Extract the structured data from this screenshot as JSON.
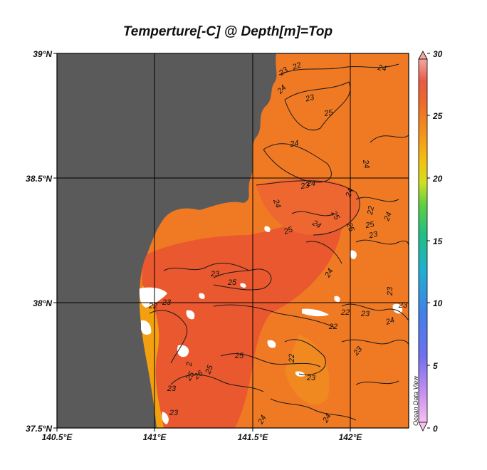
{
  "title": "Temperture[-C] @ Depth[m]=Top",
  "watermark": "Ocean Data View",
  "axes": {
    "x_ticks": [
      "140.5°E",
      "141°E",
      "141.5°E",
      "142°E"
    ],
    "y_ticks": [
      "39°N",
      "38.5°N",
      "38°N",
      "37.5°N"
    ]
  },
  "colorbar": {
    "range": [
      0,
      30
    ],
    "ticks": [
      "30",
      "25",
      "20",
      "15",
      "10",
      "5",
      "0"
    ]
  },
  "contour_labels": [
    "23",
    "24",
    "22",
    "25",
    "23",
    "24",
    "24",
    "24",
    "23",
    "24",
    "24",
    "24",
    "25",
    "25",
    "24",
    "25",
    "24",
    "25",
    "23",
    "24",
    "23",
    "25",
    "22",
    "23",
    "24",
    "23",
    "22",
    "23",
    "25",
    "23",
    "22",
    "25",
    "22",
    "23",
    "25",
    "26",
    "2",
    "23",
    "23",
    "24",
    "24",
    "23",
    "22"
  ],
  "colors": {
    "land": "#5a5a5a",
    "ocean_main": "#f07028",
    "ocean_warm": "#e8502c",
    "ocean_cool": "#f28a1c",
    "nodata": "#ffffff",
    "contour": "#1a1a1a"
  }
}
